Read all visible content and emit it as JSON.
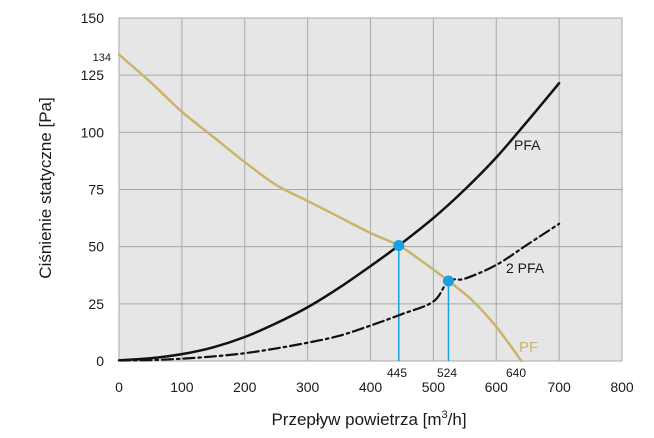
{
  "chart_data": {
    "type": "line",
    "xlabel_main": "Przepływ powietrza [m",
    "xlabel_sup": "3",
    "xlabel_tail": "/h]",
    "ylabel": "Ciśnienie statyczne [Pa]",
    "xlim": [
      0,
      800
    ],
    "ylim": [
      0,
      150
    ],
    "x_ticks": [
      "0",
      "100",
      "200",
      "300",
      "400",
      "500",
      "600",
      "700",
      "800"
    ],
    "y_ticks": [
      "0",
      "25",
      "50",
      "75",
      "100",
      "125",
      "150"
    ],
    "grid": true,
    "colors": {
      "plot_bg": "#e6e6e6",
      "grid": "#a9a9a9",
      "pf": "#c8b56a",
      "pfa": "#111111",
      "marker": "#1aa0e0"
    },
    "series": [
      {
        "name": "PF",
        "style": "solid",
        "x": [
          0,
          50,
          100,
          150,
          200,
          250,
          300,
          350,
          400,
          445,
          480,
          524,
          560,
          600,
          640
        ],
        "y": [
          134,
          122,
          109,
          98,
          87,
          77,
          70,
          63,
          56,
          50.5,
          44,
          35,
          27,
          15,
          0
        ]
      },
      {
        "name": "PFA",
        "style": "solid",
        "x": [
          0,
          50,
          100,
          150,
          200,
          250,
          300,
          350,
          400,
          445,
          500,
          550,
          600,
          650,
          700
        ],
        "y": [
          0.3,
          1.2,
          3,
          6,
          10.5,
          16.5,
          23.5,
          32,
          41.5,
          50.5,
          62.5,
          75,
          89,
          105,
          121.5
        ]
      },
      {
        "name": "2 PFA",
        "style": "dashdot",
        "x": [
          0,
          50,
          100,
          150,
          200,
          250,
          300,
          350,
          400,
          450,
          500,
          524,
          550,
          600,
          650,
          700
        ],
        "y": [
          0.2,
          0.4,
          1,
          2,
          3.4,
          5.5,
          8,
          11,
          15.5,
          20.5,
          26,
          35,
          36,
          42,
          51,
          60
        ]
      }
    ],
    "marker_points": [
      {
        "x": 445,
        "y": 50.5
      },
      {
        "x": 524,
        "y": 35
      }
    ],
    "annotations": {
      "y134": "134",
      "x445": "445",
      "x524": "524",
      "x640": "640",
      "pfa_label": "PFA",
      "pfa2_label": "2 PFA",
      "pf_label": "PF"
    }
  }
}
